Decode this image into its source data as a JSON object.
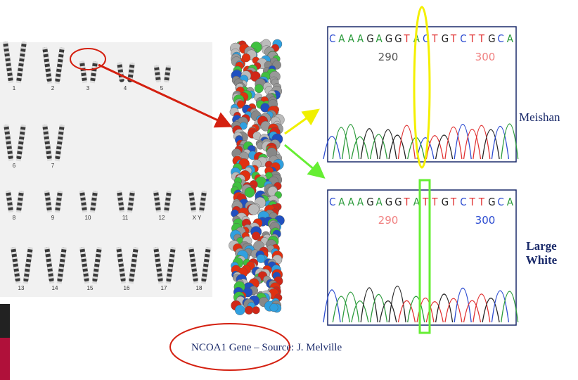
{
  "karyotype": {
    "labels": [
      "1",
      "2",
      "3",
      "4",
      "5",
      "6",
      "7",
      "8",
      "9",
      "10",
      "11",
      "12",
      "X Y",
      "13",
      "14",
      "15",
      "16",
      "17",
      "18"
    ]
  },
  "chromatograms": [
    {
      "bases": [
        "C",
        "A",
        "A",
        "A",
        "G",
        "A",
        "G",
        "G",
        "T",
        "A",
        "C",
        "T",
        "G",
        "T",
        "C",
        "T",
        "T",
        "G",
        "C",
        "A"
      ],
      "ticks": [
        290,
        300
      ],
      "breed": "Meishan"
    },
    {
      "bases": [
        "C",
        "A",
        "A",
        "A",
        "G",
        "A",
        "G",
        "G",
        "T",
        "A",
        "T",
        "T",
        "G",
        "T",
        "C",
        "T",
        "T",
        "G",
        "C",
        "A"
      ],
      "ticks": [
        290,
        300
      ],
      "breed": "Large White"
    }
  ],
  "caption": "NCOA1 Gene – Source: J. Melville"
}
